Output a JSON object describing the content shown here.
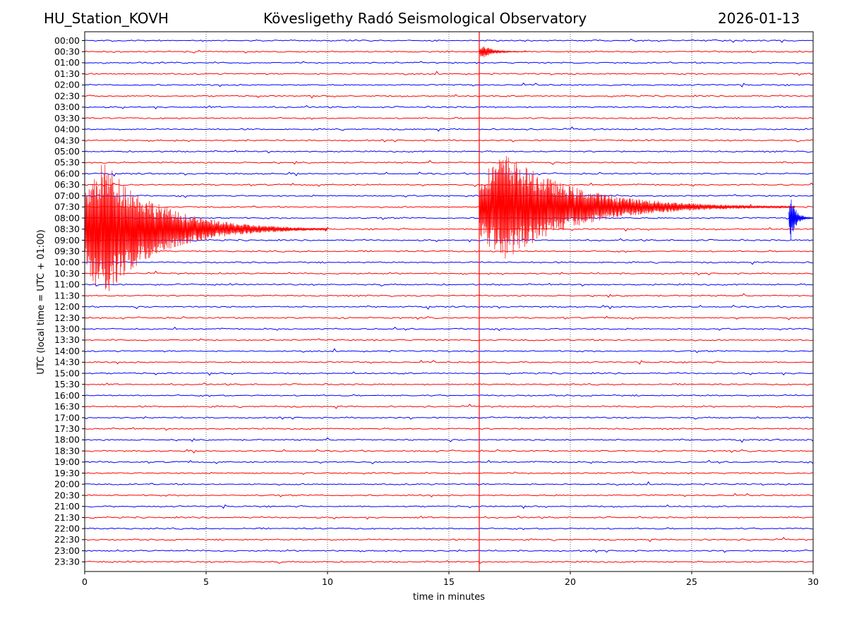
{
  "header": {
    "station": "HU_Station_KOVH",
    "observatory": "Kövesligethy Radó Seismological Observatory",
    "date": "2026-01-13"
  },
  "chart_data": {
    "type": "helicorder",
    "title": "Kövesligethy Radó Seismological Observatory",
    "xlabel": "time in minutes",
    "ylabel": "UTC (local time = UTC + 01:00)",
    "xlim": [
      0,
      30
    ],
    "xticks": [
      0,
      5,
      10,
      15,
      20,
      25,
      30
    ],
    "grid": "vertical dotted at each x tick",
    "rows": [
      "00:00",
      "00:30",
      "01:00",
      "01:30",
      "02:00",
      "02:30",
      "03:00",
      "03:30",
      "04:00",
      "04:30",
      "05:00",
      "05:30",
      "06:00",
      "06:30",
      "07:00",
      "07:30",
      "08:00",
      "08:30",
      "09:00",
      "09:30",
      "10:00",
      "10:30",
      "11:00",
      "11:30",
      "12:00",
      "12:30",
      "13:00",
      "13:30",
      "14:00",
      "14:30",
      "15:00",
      "15:30",
      "16:00",
      "16:30",
      "17:00",
      "17:30",
      "18:00",
      "18:30",
      "19:00",
      "19:30",
      "20:00",
      "20:30",
      "21:00",
      "21:30",
      "22:00",
      "22:30",
      "23:00",
      "23:30"
    ],
    "series_colors": [
      "#0000ff",
      "#ff0000"
    ],
    "events": [
      {
        "row": "00:30",
        "start_min": 16.25,
        "duration_min": 2.0,
        "amplitude": 0.9
      },
      {
        "row": "08:30",
        "start_min": 0.0,
        "duration_min": 10.0,
        "amplitude": 9.0
      },
      {
        "row": "07:30",
        "start_min": 16.25,
        "duration_min": 13.0,
        "amplitude": 7.0
      },
      {
        "row": "08:00",
        "start_min": 29.0,
        "duration_min": 1.0,
        "amplitude": 3.0
      }
    ]
  }
}
